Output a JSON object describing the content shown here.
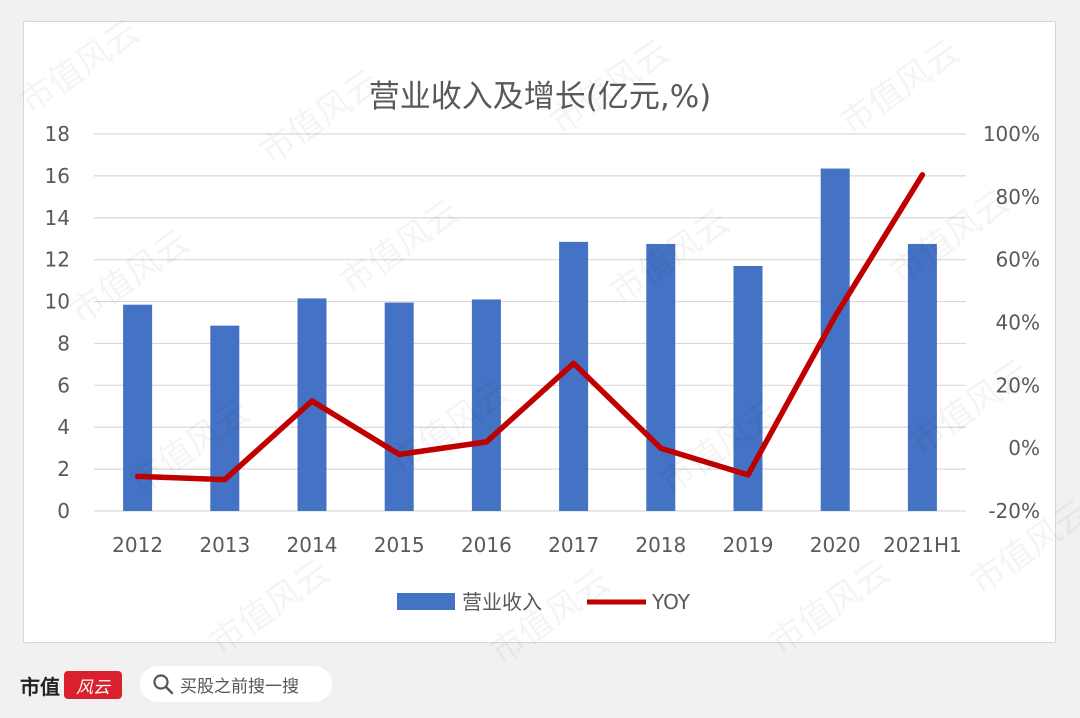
{
  "brand": {
    "name": "市值",
    "logo_text": "风云",
    "watermark": "市值风云"
  },
  "search": {
    "placeholder": "买股之前搜一搜",
    "icon": "search-icon"
  },
  "chart_data": {
    "type": "bar+line",
    "title": "营业收入及增长(亿元,%)",
    "categories": [
      "2012",
      "2013",
      "2014",
      "2015",
      "2016",
      "2017",
      "2018",
      "2019",
      "2020",
      "2021H1"
    ],
    "series": [
      {
        "name": "营业收入",
        "type": "bar",
        "axis": "left",
        "color": "#4472c4",
        "values": [
          9.85,
          8.85,
          10.15,
          9.95,
          10.1,
          12.85,
          12.75,
          11.7,
          16.35,
          12.75
        ]
      },
      {
        "name": "YOY",
        "type": "line",
        "axis": "right",
        "color": "#c00000",
        "values": [
          -9,
          -10,
          15,
          -2,
          2,
          27,
          0,
          -8.5,
          42,
          87
        ]
      }
    ],
    "left_axis": {
      "min": 0,
      "max": 18,
      "step": 2,
      "ticks": [
        "0",
        "2",
        "4",
        "6",
        "8",
        "10",
        "12",
        "14",
        "16",
        "18"
      ]
    },
    "right_axis": {
      "min": -20,
      "max": 100,
      "step": 20,
      "ticks": [
        "-20%",
        "0%",
        "20%",
        "40%",
        "60%",
        "80%",
        "100%"
      ]
    },
    "grid": true,
    "legend_position": "bottom",
    "gridline_color": "#d9d9d9"
  }
}
